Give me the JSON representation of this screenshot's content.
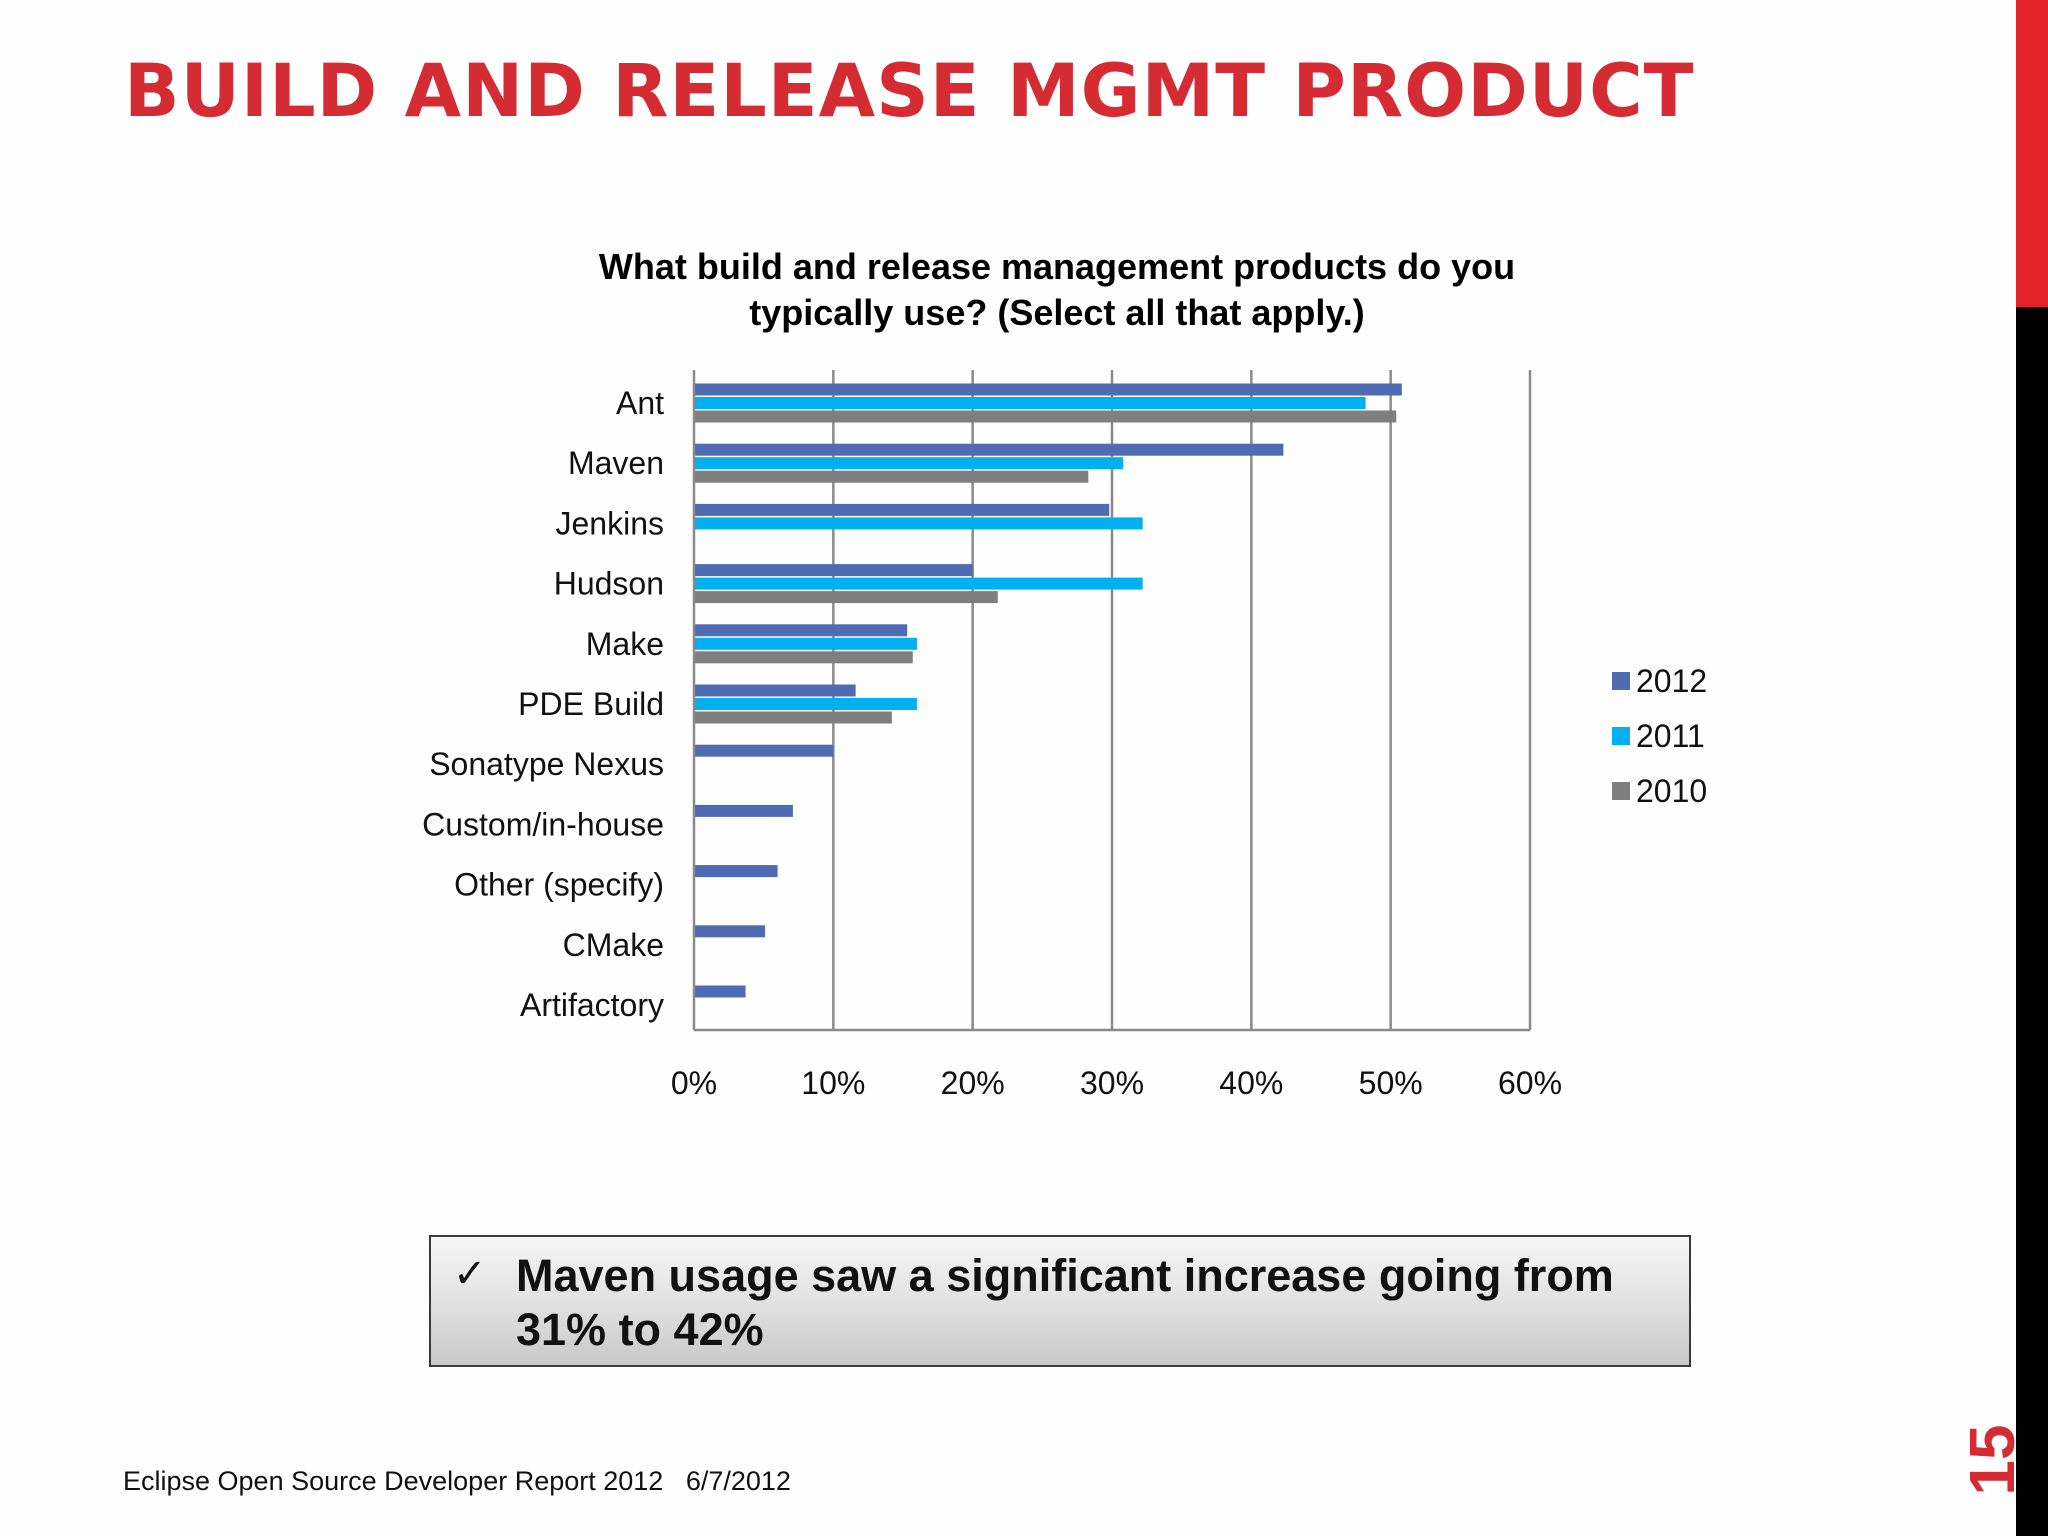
{
  "slide": {
    "title": "BUILD AND RELEASE MGMT PRODUCT",
    "page_number": "15",
    "footer": "Eclipse Open Source Developer Report 2012   6/7/2012",
    "callout": {
      "check": "✓",
      "text": "Maven usage saw a significant increase going from 31% to 42%"
    },
    "colors": {
      "title": "#d52b32",
      "sidebar_top": "#e4222a",
      "sidebar_bottom": "#000000"
    }
  },
  "chart_data": {
    "type": "bar",
    "orientation": "horizontal",
    "title_lines": [
      "What build and release management products do you",
      "typically use? (Select all that apply.)"
    ],
    "categories": [
      "Ant",
      "Maven",
      "Jenkins",
      "Hudson",
      "Make",
      "PDE Build",
      "Sonatype Nexus",
      "Custom/in-house",
      "Other (specify)",
      "CMake",
      "Artifactory"
    ],
    "series": [
      {
        "name": "2012",
        "color": "#4f6bb3",
        "values": [
          50.8,
          42.3,
          29.8,
          20.0,
          15.3,
          11.6,
          10.0,
          7.1,
          6.0,
          5.1,
          3.7
        ]
      },
      {
        "name": "2011",
        "color": "#00b0f0",
        "values": [
          48.2,
          30.8,
          32.2,
          32.2,
          16.0,
          16.0,
          null,
          null,
          null,
          null,
          null
        ]
      },
      {
        "name": "2010",
        "color": "#7f7f7f",
        "values": [
          50.4,
          28.3,
          null,
          21.8,
          15.7,
          14.2,
          null,
          null,
          null,
          null,
          null
        ]
      }
    ],
    "x_ticks": [
      "0%",
      "10%",
      "20%",
      "30%",
      "40%",
      "50%",
      "60%"
    ],
    "xlim": [
      0,
      60
    ],
    "x_unit": "%",
    "grid": "vertical",
    "legend_position": "right"
  }
}
